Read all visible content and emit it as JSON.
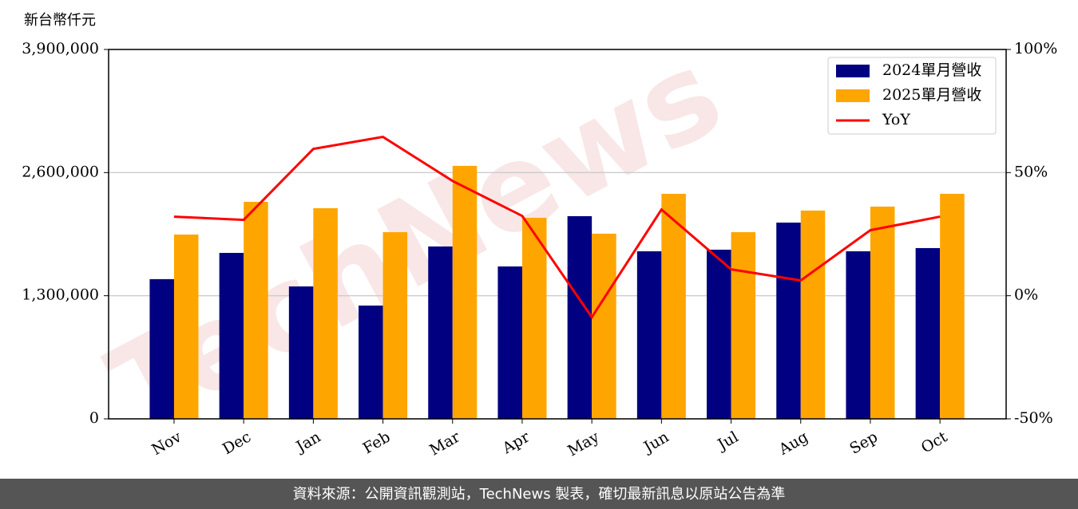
{
  "chart_data": {
    "type": "bar",
    "y_label": "新台幣仟元",
    "watermark": "TechNews",
    "footer": "資料來源：公開資訊觀測站，TechNews 製表，確切最新訊息以原站公告為準",
    "categories": [
      "Nov",
      "Dec",
      "Jan",
      "Feb",
      "Mar",
      "Apr",
      "May",
      "Jun",
      "Jul",
      "Aug",
      "Sep",
      "Oct"
    ],
    "series": [
      {
        "name": "2024單月營收",
        "color": "#000080",
        "type": "bar",
        "values": [
          1475000,
          1752000,
          1398000,
          1196000,
          1820000,
          1609000,
          2140000,
          1769000,
          1786000,
          2072000,
          1769000,
          1803000
        ]
      },
      {
        "name": "2025單月營收",
        "color": "#ffa500",
        "type": "bar",
        "values": [
          1946000,
          2291000,
          2224000,
          1971000,
          2671000,
          2123000,
          1955000,
          2376000,
          1971000,
          2199000,
          2241000,
          2376000
        ]
      },
      {
        "name": "YoY",
        "color": "#ff0000",
        "type": "line",
        "axis": "y2",
        "values": [
          32.1,
          30.8,
          59.6,
          64.5,
          46.6,
          32.4,
          -8.7,
          35.0,
          10.7,
          6.2,
          26.6,
          32.1
        ]
      }
    ],
    "ylim": [
      0,
      3900000
    ],
    "yticks": [
      {
        "value": 0,
        "label": "0"
      },
      {
        "value": 1300000,
        "label": "1,300,000"
      },
      {
        "value": 2600000,
        "label": "2,600,000"
      },
      {
        "value": 3900000,
        "label": "3,900,000"
      }
    ],
    "y2lim": [
      -50,
      100
    ],
    "y2ticks": [
      {
        "value": -50,
        "label": "-50%"
      },
      {
        "value": 0,
        "label": "0%"
      },
      {
        "value": 50,
        "label": "50%"
      },
      {
        "value": 100,
        "label": "100%"
      }
    ],
    "grid": true,
    "legend": "upper right"
  }
}
